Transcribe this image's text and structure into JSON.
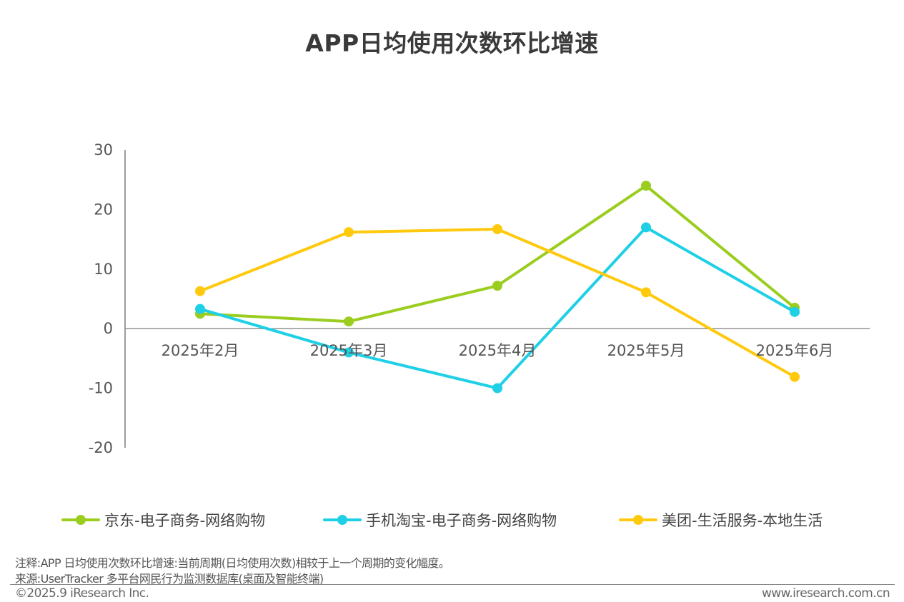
{
  "chart_data": {
    "type": "line",
    "title": "APP日均使用次数环比增速",
    "categories": [
      "2025年2月",
      "2025年3月",
      "2025年4月",
      "2025年5月",
      "2025年6月"
    ],
    "ylim": [
      -20,
      30
    ],
    "yticks": [
      30,
      20,
      10,
      0,
      -10,
      -20
    ],
    "series": [
      {
        "name": "京东-电子商务-网络购物",
        "color": "#9ACD1E",
        "values": [
          2.5,
          1.2,
          7.2,
          24.0,
          3.5
        ]
      },
      {
        "name": "手机淘宝-电子商务-网络购物",
        "color": "#1ED0E6",
        "values": [
          3.3,
          -4.0,
          -10.0,
          17.0,
          2.8
        ]
      },
      {
        "name": "美团-生活服务-本地生活",
        "color": "#FFC90E",
        "values": [
          6.3,
          16.2,
          16.7,
          6.1,
          -8.1
        ]
      }
    ],
    "legend": "bottom"
  },
  "notes": {
    "note": "注释:APP 日均使用次数环比增速:当前周期(日均使用次数)相较于上一个周期的变化幅度。",
    "source": "来源:UserTracker 多平台网民行为监测数据库(桌面及智能终端)"
  },
  "footer": {
    "copyright": "©2025.9 iResearch Inc.",
    "website": "www.iresearch.com.cn"
  }
}
